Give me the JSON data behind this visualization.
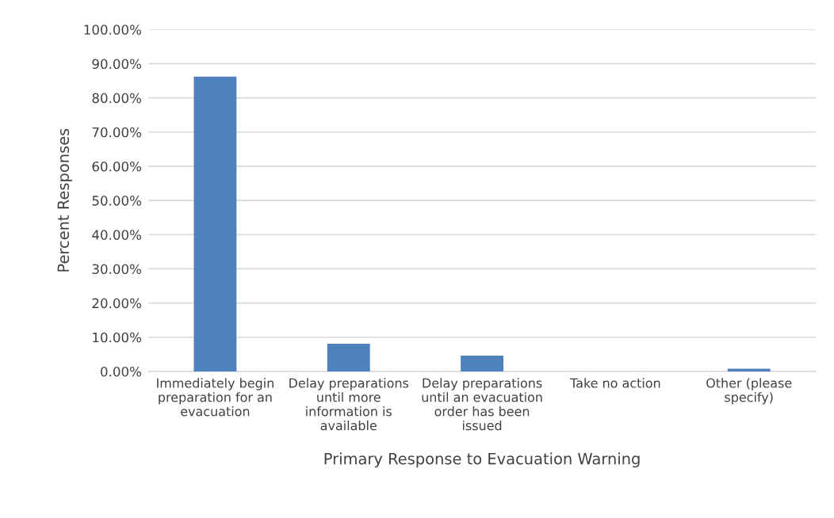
{
  "chart_data": {
    "type": "bar",
    "xlabel": "Primary Response to Evacuation Warning",
    "ylabel": "Percent Responses",
    "categories": [
      "Immediately begin\npreparation for an\nevacuation",
      "Delay preparations\nuntil more\ninformation is\navailable",
      "Delay preparations\nuntil an evacuation\norder has been\nissued",
      "Take no action",
      "Other (please\nspecify)"
    ],
    "values": [
      86.2,
      8.1,
      4.6,
      0,
      0.8
    ],
    "color": "#4f81bd",
    "ylim": [
      0,
      100
    ],
    "yticks": [
      {
        "value": 0,
        "label": "0.00%"
      },
      {
        "value": 10,
        "label": "10.00%"
      },
      {
        "value": 20,
        "label": "20.00%"
      },
      {
        "value": 30,
        "label": "30.00%"
      },
      {
        "value": 40,
        "label": "40.00%"
      },
      {
        "value": 50,
        "label": "50.00%"
      },
      {
        "value": 60,
        "label": "60.00%"
      },
      {
        "value": 70,
        "label": "70.00%"
      },
      {
        "value": 80,
        "label": "80.00%"
      },
      {
        "value": 90,
        "label": "90.00%"
      },
      {
        "value": 100,
        "label": "100.00%"
      }
    ],
    "grid": "y"
  }
}
